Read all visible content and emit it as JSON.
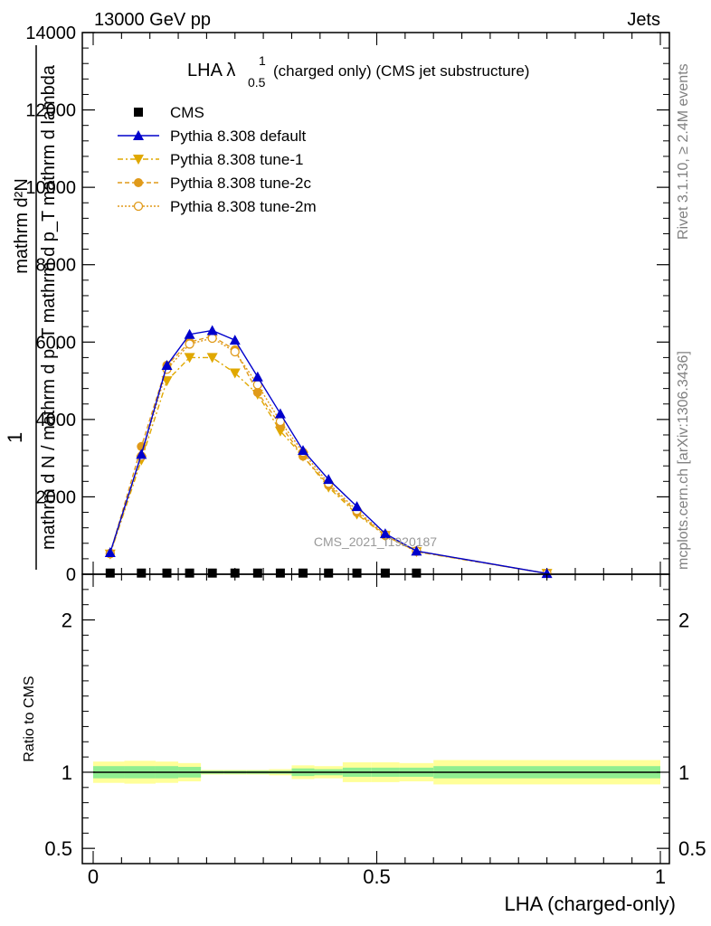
{
  "header": {
    "left": "13000 GeV pp",
    "right": "Jets"
  },
  "side_labels": {
    "rivet": "Rivet 3.1.10, ≥ 2.4M events",
    "mcplots": "mcplots.cern.ch [arXiv:1306.3436]"
  },
  "watermark": "CMS_2021_I1920187",
  "ylabel_main": {
    "numerator": "mathrm d^{2}N",
    "numerator_display": "mathrm d²N",
    "left_factor": "1",
    "denominator": "mathrm d N / mathrm d p_T mathrm d p_T mathrm d lambda",
    "denominator_display": "mathrm d N / mathrm d p_T mathrm d p_T mathrm d lambda"
  },
  "chart_data": [
    {
      "type": "line",
      "title": "LHA λ¹₀.₅ (charged only) (CMS jet substructure)",
      "title_parts": {
        "main": "LHA λ",
        "sup": "1",
        "sub": "0.5",
        "rest": "(charged only) (CMS jet substructure)"
      },
      "xlabel": "",
      "ylabel": "",
      "xlim": [
        0,
        1
      ],
      "ylim": [
        0,
        14000
      ],
      "yticks": [
        0,
        2000,
        4000,
        6000,
        8000,
        10000,
        12000,
        14000
      ],
      "ytick_labels": [
        "0",
        "2000",
        "4000",
        "6000",
        "8000",
        "10000",
        "12000",
        "14000"
      ],
      "legend_position": "top-left",
      "legend": [
        {
          "name": "CMS",
          "color": "#000000",
          "marker": "square",
          "dash": ""
        },
        {
          "name": "Pythia 8.308 default",
          "color": "#0000cc",
          "marker": "triangle-up",
          "dash": ""
        },
        {
          "name": "Pythia 8.308 tune-1",
          "color": "#e0a800",
          "marker": "triangle-down",
          "dash": "6,3,2,3"
        },
        {
          "name": "Pythia 8.308 tune-2c",
          "color": "#e09a1a",
          "marker": "circle",
          "dash": "5,3"
        },
        {
          "name": "Pythia 8.308 tune-2m",
          "color": "#e09a1a",
          "marker": "circle-open",
          "dash": "2,2"
        }
      ],
      "series": [
        {
          "name": "CMS",
          "x": [
            0.03,
            0.085,
            0.13,
            0.17,
            0.21,
            0.25,
            0.29,
            0.33,
            0.37,
            0.415,
            0.465,
            0.515,
            0.57
          ],
          "values": [
            30,
            30,
            30,
            30,
            30,
            30,
            30,
            30,
            30,
            30,
            30,
            30,
            30
          ]
        },
        {
          "name": "Pythia 8.308 default",
          "x": [
            0.03,
            0.085,
            0.13,
            0.17,
            0.21,
            0.25,
            0.29,
            0.33,
            0.37,
            0.415,
            0.465,
            0.515,
            0.57,
            0.8
          ],
          "values": [
            560,
            3100,
            5400,
            6200,
            6300,
            6050,
            5100,
            4150,
            3200,
            2450,
            1750,
            1050,
            600,
            20
          ]
        },
        {
          "name": "Pythia 8.308 tune-1",
          "x": [
            0.03,
            0.085,
            0.13,
            0.17,
            0.21,
            0.25,
            0.29,
            0.33,
            0.37,
            0.415,
            0.465,
            0.515,
            0.57,
            0.8
          ],
          "values": [
            520,
            2950,
            5000,
            5600,
            5600,
            5200,
            4650,
            3700,
            3050,
            2250,
            1550,
            1000,
            580,
            20
          ]
        },
        {
          "name": "Pythia 8.308 tune-2c",
          "x": [
            0.03,
            0.085,
            0.13,
            0.17,
            0.21,
            0.25,
            0.29,
            0.33,
            0.37,
            0.415,
            0.465,
            0.515,
            0.57,
            0.8
          ],
          "values": [
            540,
            3300,
            5400,
            6000,
            6150,
            5800,
            4700,
            3850,
            3050,
            2300,
            1600,
            1000,
            590,
            20
          ]
        },
        {
          "name": "Pythia 8.308 tune-2m",
          "x": [
            0.03,
            0.085,
            0.13,
            0.17,
            0.21,
            0.25,
            0.29,
            0.33,
            0.37,
            0.415,
            0.465,
            0.515,
            0.57,
            0.8
          ],
          "values": [
            530,
            3050,
            5300,
            5950,
            6100,
            5750,
            4900,
            3950,
            3150,
            2350,
            1650,
            1020,
            600,
            20
          ]
        }
      ]
    },
    {
      "type": "area",
      "title": "",
      "xlabel": "LHA (charged-only)",
      "ylabel": "Ratio to CMS",
      "xlim": [
        0,
        1
      ],
      "ylim": [
        0.4,
        2.3
      ],
      "yticks": [
        0.5,
        1,
        2
      ],
      "ytick_labels": [
        "0.5",
        "1",
        "2"
      ],
      "xticks": [
        0,
        0.5,
        1
      ],
      "xtick_labels": [
        "0",
        "0.5",
        "1"
      ],
      "bins": [
        0,
        0.055,
        0.11,
        0.15,
        0.19,
        0.23,
        0.27,
        0.31,
        0.35,
        0.39,
        0.44,
        0.49,
        0.54,
        0.6,
        1.0
      ],
      "stat_band_half": [
        0.04,
        0.04,
        0.04,
        0.035,
        0.01,
        0.01,
        0.01,
        0.01,
        0.025,
        0.02,
        0.03,
        0.03,
        0.03,
        0.04
      ],
      "total_band_half": [
        0.07,
        0.075,
        0.07,
        0.06,
        0.015,
        0.015,
        0.015,
        0.02,
        0.045,
        0.04,
        0.065,
        0.065,
        0.06,
        0.08
      ],
      "reference_line": 1
    }
  ],
  "colors": {
    "stat_band": "#90ee90",
    "total_band": "#ffff99",
    "axis": "#000000",
    "side_text": "#808080"
  }
}
